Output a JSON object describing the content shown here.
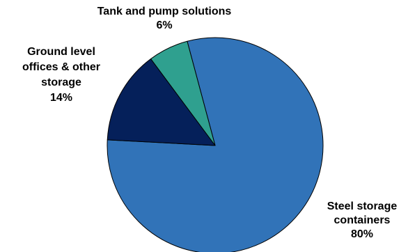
{
  "chart_data": {
    "type": "pie",
    "title": "",
    "slices": [
      {
        "label_lines": [
          "Steel storage",
          "containers"
        ],
        "value": 80,
        "value_text": "80%",
        "color": "#3173B8"
      },
      {
        "label_lines": [
          "Ground level",
          "offices & other",
          "storage"
        ],
        "value": 14,
        "value_text": "14%",
        "color": "#05205A"
      },
      {
        "label_lines": [
          "Tank and pump solutions"
        ],
        "value": 6,
        "value_text": "6%",
        "color": "#2FA08F"
      }
    ],
    "start_angle_deg": -15,
    "direction": "clockwise",
    "slice_border_color": "#000000",
    "legend": "none"
  }
}
